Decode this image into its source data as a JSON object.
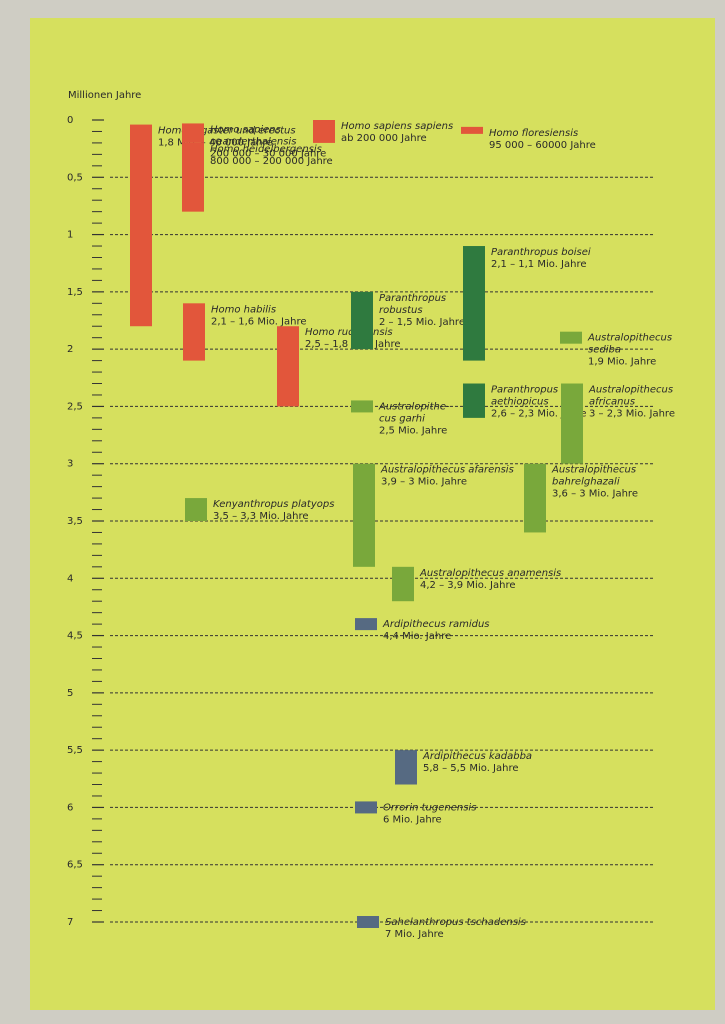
{
  "chart_data": {
    "type": "range_timeline",
    "y_label": "Millionen Jahre",
    "ylim": [
      0,
      7
    ],
    "yticks": [
      0,
      {
        "value": 0.5,
        "label": "0,5"
      },
      1,
      {
        "value": 1.5,
        "label": "1,5"
      },
      2,
      {
        "value": 2.5,
        "label": "2,5"
      },
      3,
      {
        "value": 3.5,
        "label": "3,5"
      },
      4,
      {
        "value": 4.5,
        "label": "4,5"
      },
      5,
      {
        "value": 5.5,
        "label": "5,5"
      },
      6,
      {
        "value": 6.5,
        "label": "6,5"
      },
      7
    ],
    "grid": true,
    "series": [
      {
        "name": [
          "Homo ergaster und erectus"
        ],
        "range_label": "1,8 Mio. – 40 000 Jahre",
        "values": [
          0.04,
          1.8
        ],
        "color": "#e2563b"
      },
      {
        "name": [
          "Homo sapiens",
          "neanderthalensis"
        ],
        "range_label": "200 000 – 30 000 Jahre",
        "values": [
          0.03,
          0.2
        ],
        "color": "#e2563b"
      },
      {
        "name": [
          "Homo heidelbergensis"
        ],
        "range_label": "800 000 – 200 000 Jahre",
        "values": [
          0.2,
          0.8
        ],
        "color": "#e2563b"
      },
      {
        "name": [
          "Homo sapiens sapiens"
        ],
        "range_label": "ab 200 000 Jahre",
        "values": [
          0,
          0.2
        ],
        "color": "#e2563b"
      },
      {
        "name": [
          "Homo floresiensis"
        ],
        "range_label": "95 000 – 60000 Jahre",
        "values": [
          0.06,
          0.095
        ],
        "color": "#e2563b"
      },
      {
        "name": [
          "Homo habilis"
        ],
        "range_label": "2,1 – 1,6 Mio. Jahre",
        "values": [
          1.6,
          2.1
        ],
        "color": "#e2563b"
      },
      {
        "name": [
          "Homo rudolfensis"
        ],
        "range_label": "2,5 – 1,8 Mio. Jahre",
        "values": [
          1.8,
          2.5
        ],
        "color": "#e2563b"
      },
      {
        "name": [
          "Paranthropus",
          "robustus"
        ],
        "range_label": "2 – 1,5 Mio. Jahre",
        "values": [
          1.5,
          2
        ],
        "color": "#2f7a3f"
      },
      {
        "name": [
          "Paranthropus boisei"
        ],
        "range_label": "2,1 – 1,1 Mio. Jahre",
        "values": [
          1.1,
          2.1
        ],
        "color": "#2f7a3f"
      },
      {
        "name": [
          "Australopithecus",
          "sediba"
        ],
        "range_label": "1,9 Mio. Jahre",
        "values": [
          1.9
        ],
        "color": "#79a83b"
      },
      {
        "name": [
          "Australopithe-",
          "cus garhi"
        ],
        "range_label": "2,5 Mio. Jahre",
        "values": [
          2.5
        ],
        "color": "#79a83b"
      },
      {
        "name": [
          "Paranthropus",
          "aethiopicus"
        ],
        "range_label": "2,6 – 2,3 Mio. Jahre",
        "values": [
          2.3,
          2.6
        ],
        "color": "#2f7a3f"
      },
      {
        "name": [
          "Australopithecus",
          "africanus"
        ],
        "range_label": "3 – 2,3 Mio. Jahre",
        "values": [
          2.3,
          3
        ],
        "color": "#79a83b"
      },
      {
        "name": [
          "Kenyanthropus platyops"
        ],
        "range_label": "3,5 – 3,3 Mio. Jahre",
        "values": [
          3.3,
          3.5
        ],
        "color": "#79a83b"
      },
      {
        "name": [
          "Australopithecus afarensis"
        ],
        "range_label": "3,9 – 3 Mio. Jahre",
        "values": [
          3,
          3.9
        ],
        "color": "#79a83b"
      },
      {
        "name": [
          "Australopithecus",
          "bahrelghazali"
        ],
        "range_label": "3,6 – 3 Mio. Jahre",
        "values": [
          3,
          3.6
        ],
        "color": "#79a83b"
      },
      {
        "name": [
          "Australopithecus anamensis"
        ],
        "range_label": "4,2 – 3,9 Mio. Jahre",
        "values": [
          3.9,
          4.2
        ],
        "color": "#79a83b"
      },
      {
        "name": [
          "Ardipithecus ramidus"
        ],
        "range_label": "4,4 Mio. Jahre",
        "values": [
          4.4
        ],
        "color": "#566a82"
      },
      {
        "name": [
          "Ardipithecus kadabba"
        ],
        "range_label": "5,8 – 5,5 Mio. Jahre",
        "values": [
          5.5,
          5.8
        ],
        "color": "#566a82"
      },
      {
        "name": [
          "Orrorin tugenensis"
        ],
        "range_label": "6 Mio. Jahre",
        "values": [
          6
        ],
        "color": "#566a82"
      },
      {
        "name": [
          "Sahelanthropus tschadensis"
        ],
        "range_label": "7 Mio. Jahre",
        "values": [
          7
        ],
        "color": "#566a82"
      }
    ]
  }
}
